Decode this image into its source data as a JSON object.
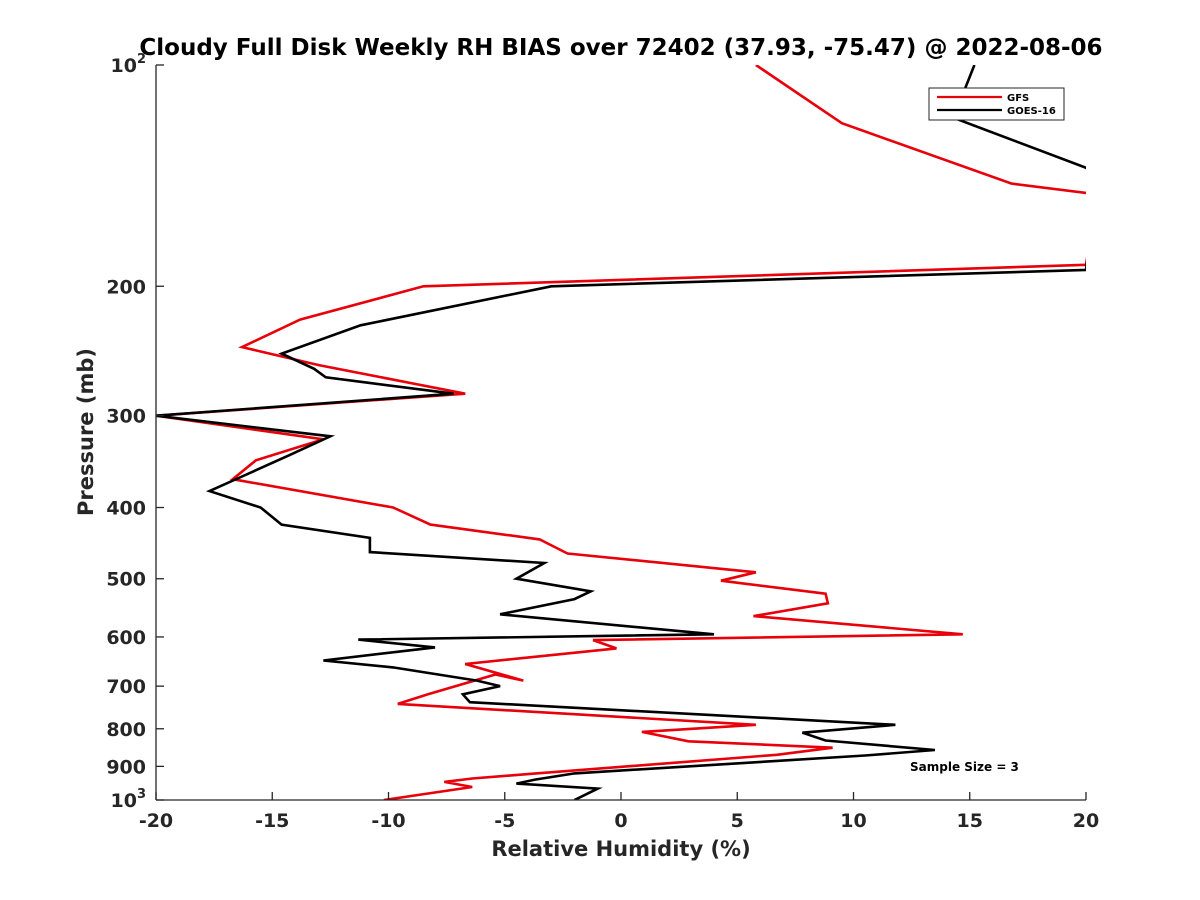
{
  "chart_data": {
    "type": "line",
    "title": "Cloudy Full Disk Weekly RH BIAS over 72402 (37.93, -75.47) @ 2022-08-06",
    "xlabel": "Relative Humidity (%)",
    "ylabel": "Pressure (mb)",
    "xlim": [
      -20,
      20
    ],
    "ylim": [
      100,
      1000
    ],
    "y_scale": "log",
    "y_reversed": true,
    "grid": false,
    "legend_position": "top-right",
    "x_ticks": [
      -20,
      -15,
      -10,
      -5,
      0,
      5,
      10,
      15,
      20
    ],
    "x_tick_labels": [
      "-20",
      "-15",
      "-10",
      "-5",
      "0",
      "5",
      "10",
      "15",
      "20"
    ],
    "y_ticks": [
      {
        "value": 100,
        "base": "10",
        "exp": "2"
      },
      {
        "value": 200,
        "label": "200"
      },
      {
        "value": 300,
        "label": "300"
      },
      {
        "value": 400,
        "label": "400"
      },
      {
        "value": 500,
        "label": "500"
      },
      {
        "value": 600,
        "label": "600"
      },
      {
        "value": 700,
        "label": "700"
      },
      {
        "value": 800,
        "label": "800"
      },
      {
        "value": 900,
        "label": "900"
      },
      {
        "value": 1000,
        "base": "10",
        "exp": "3"
      }
    ],
    "annotation": "Sample Size = 3",
    "series": [
      {
        "name": "GFS",
        "color": "#e8000b",
        "points": [
          [
            5.8,
            100
          ],
          [
            9.5,
            120
          ],
          [
            16.8,
            145
          ],
          [
            20.5,
            150
          ],
          [
            20,
            187
          ],
          [
            -8.5,
            200
          ],
          [
            -13.8,
            222
          ],
          [
            -16.3,
            242
          ],
          [
            -13,
            256
          ],
          [
            -6.7,
            280
          ],
          [
            -20,
            300
          ],
          [
            -12.8,
            323
          ],
          [
            -15.7,
            345
          ],
          [
            -16.7,
            366
          ],
          [
            -9.8,
            400
          ],
          [
            -8.2,
            422
          ],
          [
            -3.5,
            442
          ],
          [
            -2.3,
            462
          ],
          [
            5.8,
            490
          ],
          [
            4.3,
            503
          ],
          [
            8.8,
            524
          ],
          [
            8.9,
            540
          ],
          [
            5.7,
            562
          ],
          [
            14.7,
            595
          ],
          [
            -1.2,
            606
          ],
          [
            -0.2,
            622
          ],
          [
            -6.7,
            653
          ],
          [
            -4.2,
            688
          ],
          [
            -5.4,
            675
          ],
          [
            -8.3,
            718
          ],
          [
            -9.6,
            740
          ],
          [
            5.8,
            790
          ],
          [
            0.9,
            808
          ],
          [
            2.9,
            832
          ],
          [
            9.1,
            849
          ],
          [
            6.7,
            868
          ],
          [
            -4,
            922
          ],
          [
            -6.4,
            935
          ],
          [
            -7.6,
            945
          ],
          [
            -6.4,
            960
          ],
          [
            -10.2,
            1000
          ]
        ]
      },
      {
        "name": "GOES-16",
        "color": "#000000",
        "points": [
          [
            15.2,
            100
          ],
          [
            14.3,
            118
          ],
          [
            20,
            138
          ],
          [
            20.5,
            142
          ],
          [
            20,
            190
          ],
          [
            -3,
            200
          ],
          [
            -11.2,
            226
          ],
          [
            -14.6,
            247
          ],
          [
            -13.2,
            259
          ],
          [
            -12.7,
            266
          ],
          [
            -7.2,
            280
          ],
          [
            -20,
            300
          ],
          [
            -12.5,
            320
          ],
          [
            -14.3,
            340
          ],
          [
            -16.3,
            363
          ],
          [
            -17.7,
            380
          ],
          [
            -15.5,
            400
          ],
          [
            -14.6,
            422
          ],
          [
            -10.8,
            440
          ],
          [
            -10.8,
            460
          ],
          [
            -3.3,
            476
          ],
          [
            -4.5,
            500
          ],
          [
            -1.3,
            520
          ],
          [
            -2,
            533
          ],
          [
            -5.2,
            559
          ],
          [
            4,
            595
          ],
          [
            -11.3,
            605
          ],
          [
            -8,
            620
          ],
          [
            -12.8,
            646
          ],
          [
            -9.8,
            660
          ],
          [
            -6.2,
            688
          ],
          [
            -5.2,
            700
          ],
          [
            -6.8,
            718
          ],
          [
            -6.5,
            736
          ],
          [
            11.8,
            790
          ],
          [
            7.8,
            810
          ],
          [
            8.8,
            830
          ],
          [
            13.5,
            855
          ],
          [
            10.5,
            870
          ],
          [
            -2,
            920
          ],
          [
            -3.7,
            938
          ],
          [
            -4.5,
            950
          ],
          [
            -1,
            965
          ],
          [
            -2,
            1000
          ]
        ]
      }
    ]
  }
}
